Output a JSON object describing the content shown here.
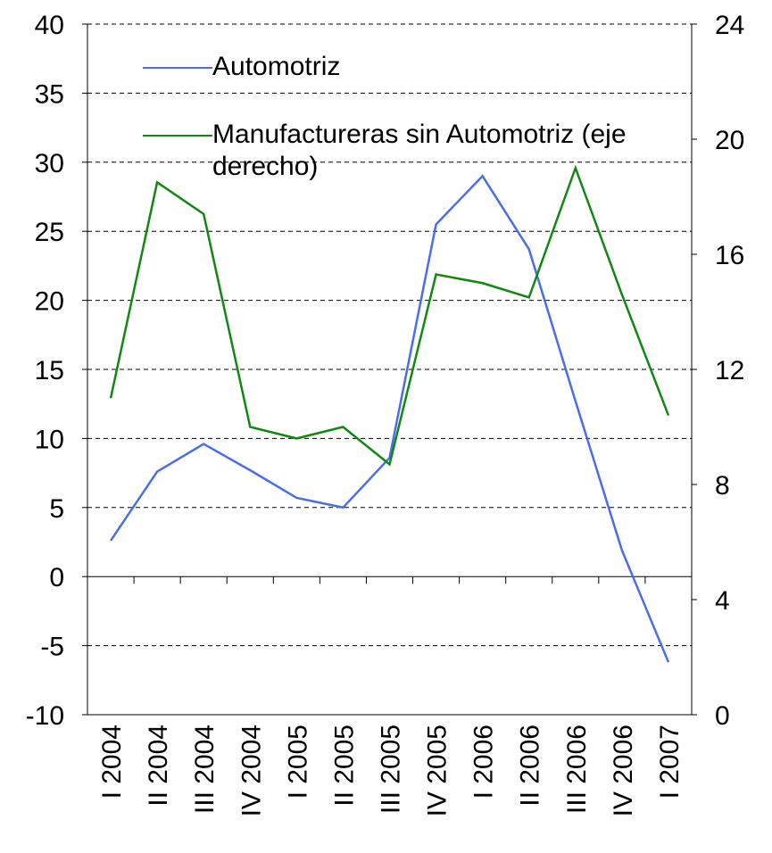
{
  "chart_data": {
    "type": "line",
    "categories": [
      "I 2004",
      "II 2004",
      "III 2004",
      "IV 2004",
      "I 2005",
      "II 2005",
      "III 2005",
      "IV 2005",
      "I 2006",
      "II 2006",
      "III 2006",
      "IV 2006",
      "I 2007"
    ],
    "series": [
      {
        "name": "Automotriz",
        "color": "#4a6ee8",
        "values": [
          2.6,
          7.6,
          9.6,
          7.7,
          5.7,
          5.0,
          8.6,
          25.5,
          29.0,
          23.7,
          12.7,
          1.9,
          -6.2
        ]
      },
      {
        "name": "Manufactureras sin Automotriz (eje derecho)",
        "color": "#118811",
        "axis": "y2",
        "values": [
          11.0,
          18.5,
          17.4,
          10.0,
          9.6,
          10.0,
          8.7,
          15.3,
          15.0,
          14.5,
          19.0,
          14.6,
          10.4
        ]
      }
    ],
    "ylim": [
      -10,
      40
    ],
    "yticks": [
      -10,
      -5,
      0,
      5,
      10,
      15,
      20,
      25,
      30,
      35,
      40
    ],
    "y2lim": [
      0,
      24
    ],
    "y2ticks": [
      0,
      4,
      8,
      12,
      16,
      20,
      24
    ],
    "grid": true,
    "legend": "top-left"
  }
}
